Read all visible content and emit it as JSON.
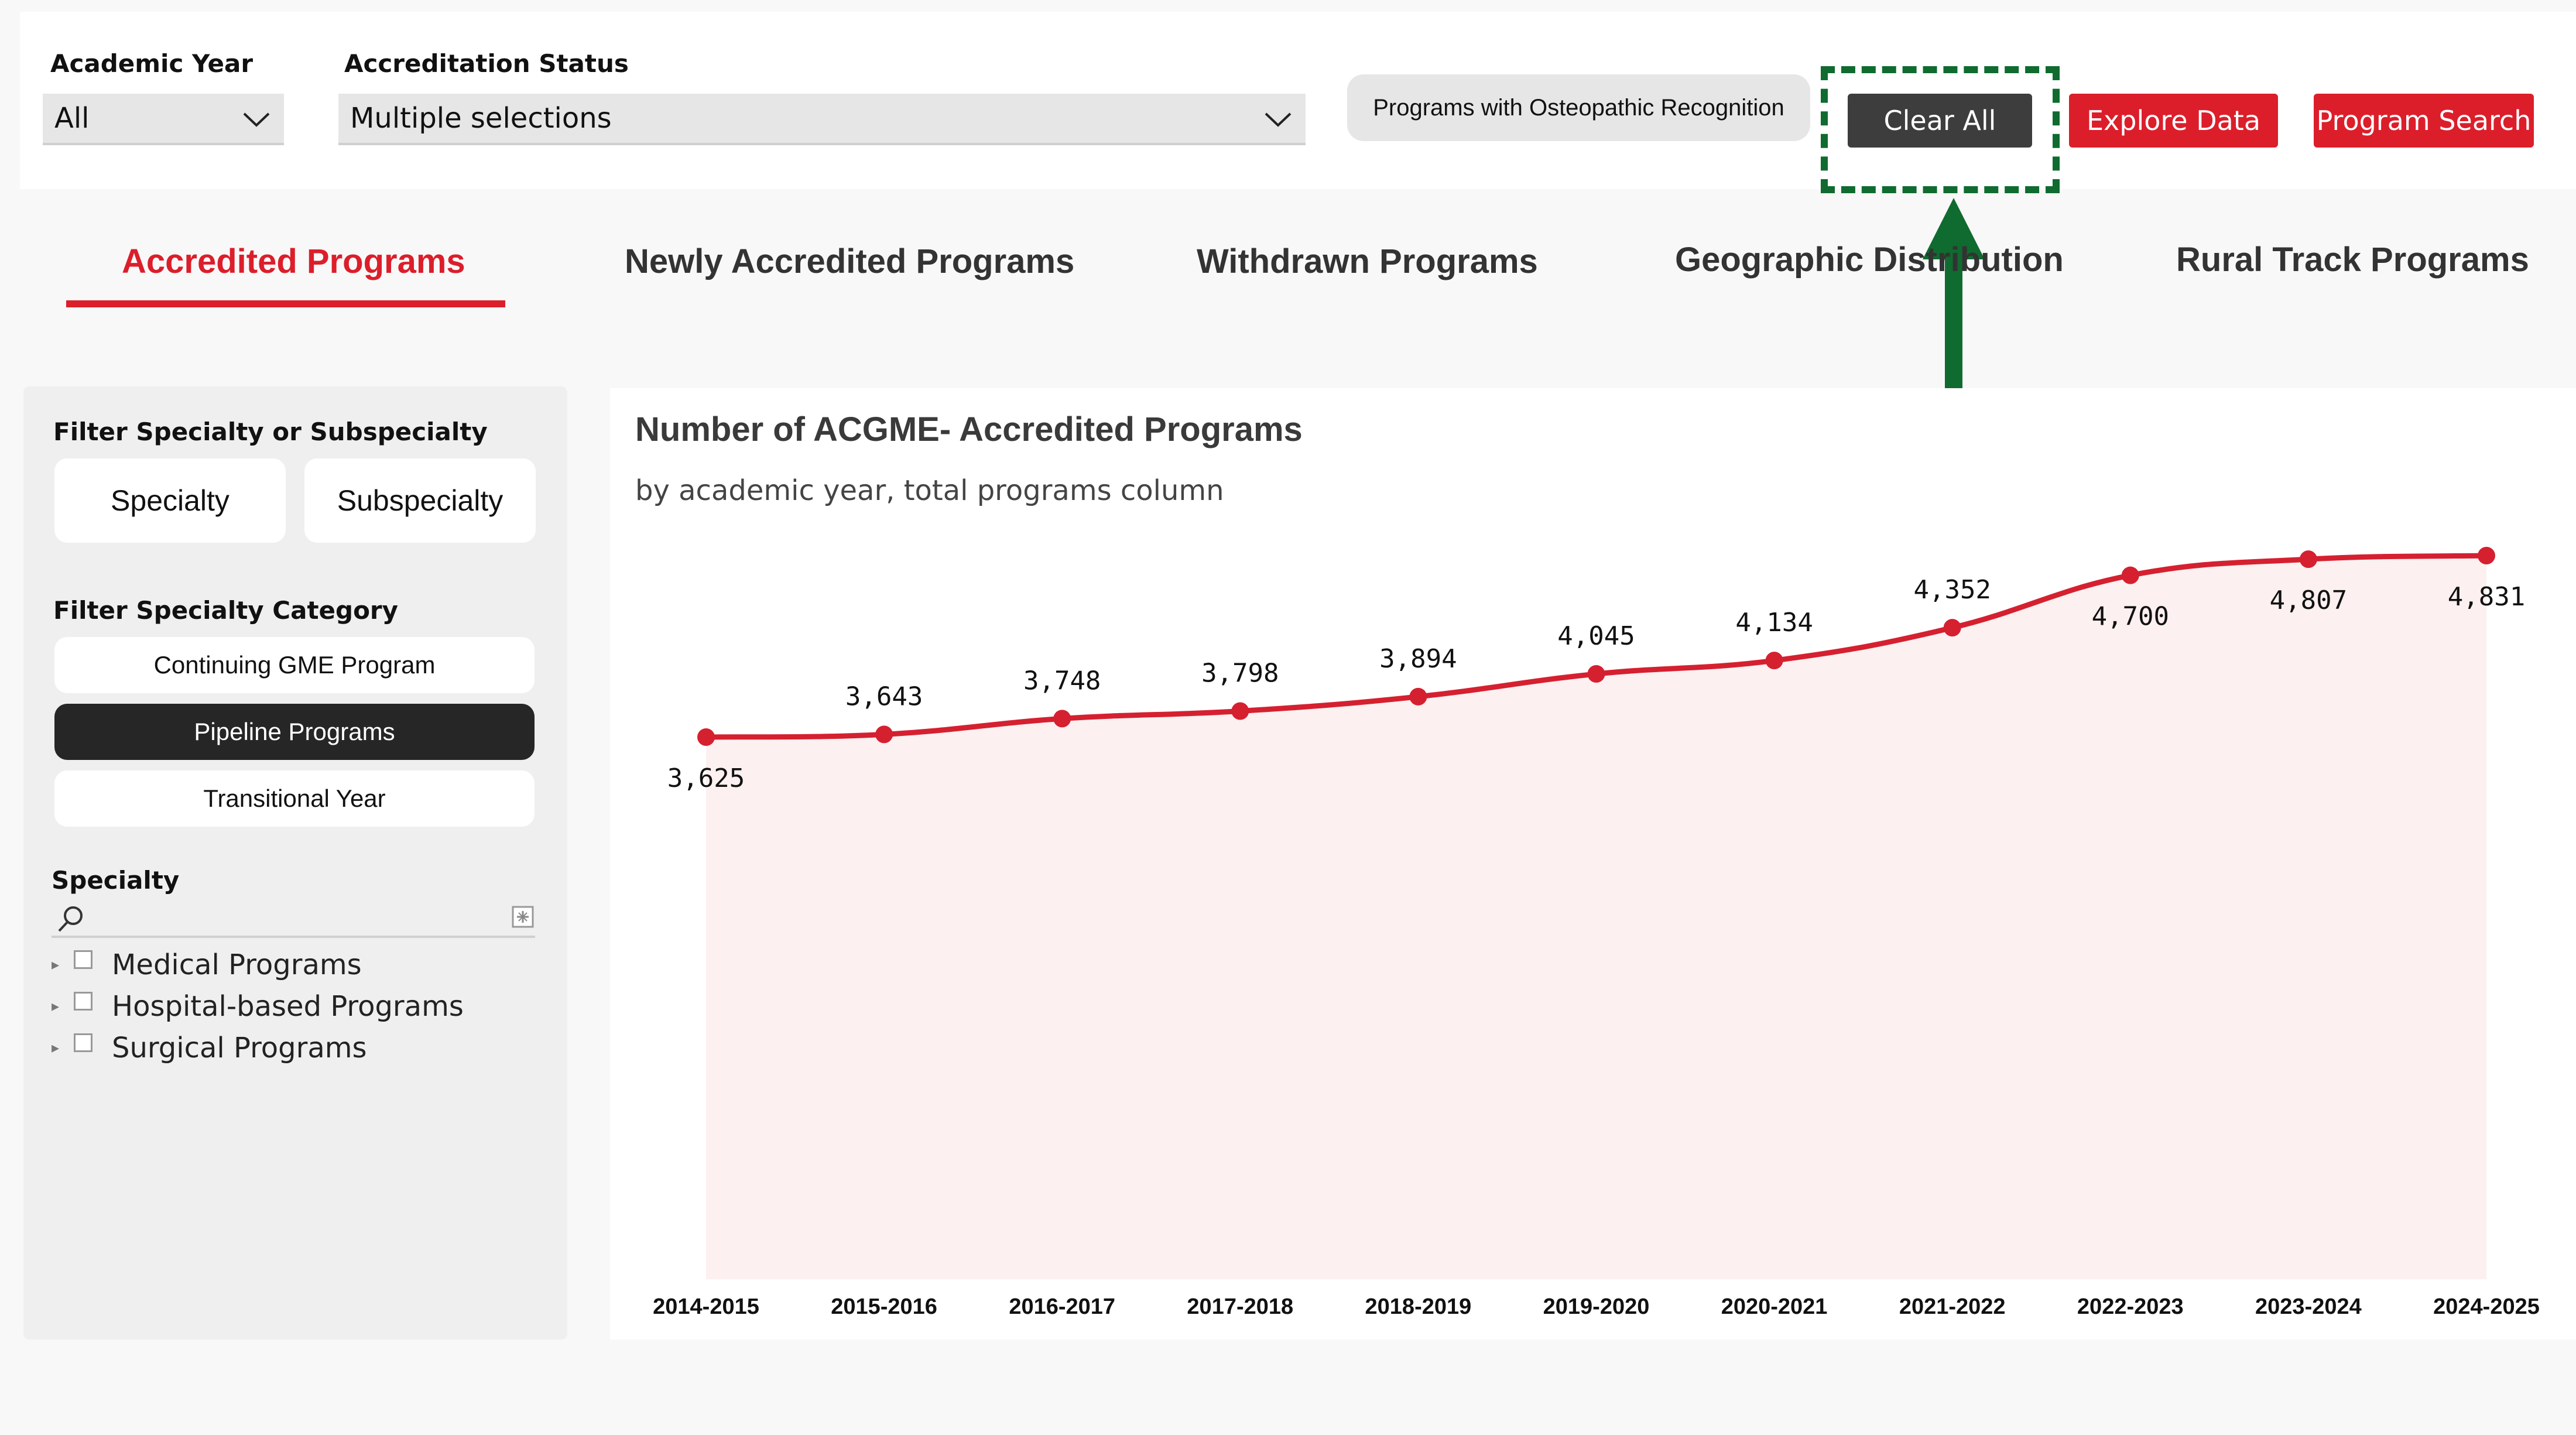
{
  "filters": {
    "academic_year": {
      "label": "Academic Year",
      "value": "All"
    },
    "accreditation_status": {
      "label": "Accreditation Status",
      "value": "Multiple selections"
    },
    "osteopathic_label": "Programs with Osteopathic Recognition",
    "clear_all_label": "Clear All",
    "explore_data_label": "Explore Data",
    "program_search_label": "Program Search"
  },
  "tabs": [
    {
      "label": "Accredited Programs",
      "active": true
    },
    {
      "label": "Newly Accredited Programs",
      "active": false
    },
    {
      "label": "Withdrawn Programs",
      "active": false
    },
    {
      "label": "Geographic Distribution",
      "active": false
    },
    {
      "label": "Rural Track Programs",
      "active": false
    }
  ],
  "sidebar": {
    "specialty_filter_label": "Filter Specialty or Subspecialty",
    "specialty_button": "Specialty",
    "subspecialty_button": "Subspecialty",
    "category_label": "Filter Specialty Category",
    "categories": [
      {
        "label": "Continuing GME Program",
        "selected": false
      },
      {
        "label": "Pipeline Programs",
        "selected": true
      },
      {
        "label": "Transitional Year",
        "selected": false
      }
    ],
    "specialty_list_label": "Specialty",
    "search_value": "",
    "tree_items": [
      "Medical Programs",
      "Hospital-based Programs",
      "Surgical Programs"
    ]
  },
  "chart": {
    "title": "Number of ACGME- Accredited Programs",
    "subtitle": "by academic year, total programs column"
  },
  "chart_data": {
    "type": "area",
    "categories": [
      "2014-2015",
      "2015-2016",
      "2016-2017",
      "2017-2018",
      "2018-2019",
      "2019-2020",
      "2020-2021",
      "2021-2022",
      "2022-2023",
      "2023-2024",
      "2024-2025"
    ],
    "values": [
      3625,
      3643,
      3748,
      3798,
      3894,
      4045,
      4134,
      4352,
      4700,
      4807,
      4831
    ],
    "data_labels": [
      "3,625",
      "3,643",
      "3,748",
      "3,798",
      "3,894",
      "4,045",
      "4,134",
      "4,352",
      "4,700",
      "4,807",
      "4,831"
    ],
    "title": "Number of ACGME- Accredited Programs",
    "subtitle": "by academic year, total programs column",
    "xlabel": "",
    "ylabel": "",
    "line_color": "#d52030",
    "fill_color": "#fdf0f0",
    "grid": false
  },
  "colors": {
    "accent_red": "#dc1e2b",
    "highlight_green": "#0f6b2f",
    "dark_button": "#3d3d3d"
  }
}
